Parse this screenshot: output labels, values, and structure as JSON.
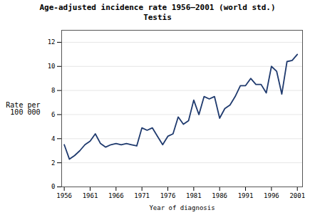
{
  "chart_data": {
    "type": "line",
    "title": "Age-adjusted incidence rate 1956–2001 (world std.)",
    "subtitle": "Testis",
    "xlabel": "Year of diagnosis",
    "ylabel": "Rate per\n100 000",
    "x": [
      1956,
      1957,
      1958,
      1959,
      1960,
      1961,
      1962,
      1963,
      1964,
      1965,
      1966,
      1967,
      1968,
      1969,
      1970,
      1971,
      1972,
      1973,
      1974,
      1975,
      1976,
      1977,
      1978,
      1979,
      1980,
      1981,
      1982,
      1983,
      1984,
      1985,
      1986,
      1987,
      1988,
      1989,
      1990,
      1991,
      1992,
      1993,
      1994,
      1995,
      1996,
      1997,
      1998,
      1999,
      2000,
      2001
    ],
    "values": [
      3.5,
      2.3,
      2.6,
      3.0,
      3.5,
      3.8,
      4.4,
      3.6,
      3.3,
      3.5,
      3.6,
      3.5,
      3.6,
      3.5,
      3.4,
      4.9,
      4.7,
      4.9,
      4.2,
      3.5,
      4.2,
      4.4,
      5.8,
      5.2,
      5.5,
      7.2,
      6.0,
      7.5,
      7.3,
      7.5,
      5.7,
      6.5,
      6.8,
      7.5,
      8.4,
      8.4,
      9.0,
      8.5,
      8.5,
      7.8,
      10.0,
      9.6,
      7.7,
      10.4,
      10.5,
      11.0
    ],
    "color": "#1f3a6e",
    "xlim": [
      1955.5,
      2002
    ],
    "xticks": [
      1956,
      1961,
      1966,
      1971,
      1976,
      1981,
      1986,
      1991,
      1996,
      2001
    ],
    "ylim": [
      0,
      13
    ],
    "yticks": [
      0,
      2,
      4,
      6,
      8,
      10,
      12
    ],
    "grid": true
  }
}
